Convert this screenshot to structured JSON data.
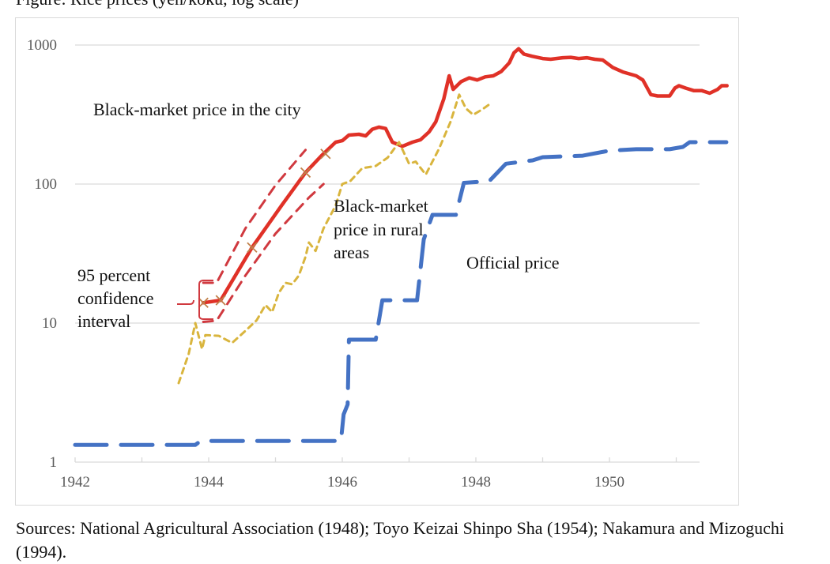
{
  "figure": {
    "title_partial": "Figure: Rice prices (yen/koku, log scale)",
    "sources": "Sources: National Agricultural Association (1948); Toyo Keizai Shinpo Sha (1954); Nakamura and Mizoguchi (1994)."
  },
  "chart_data": {
    "type": "line",
    "title": "",
    "xlabel": "",
    "ylabel": "",
    "yscale": "log",
    "ylim": [
      1,
      1000
    ],
    "xlim": [
      1942,
      1951.4
    ],
    "grid": true,
    "x_ticks": [
      1942,
      1943,
      1944,
      1945,
      1946,
      1947,
      1948,
      1949,
      1950,
      1951
    ],
    "x_tick_labels": [
      "1942",
      "",
      "1944",
      "",
      "1946",
      "",
      "1948",
      "",
      "1950",
      ""
    ],
    "y_ticks": [
      1,
      10,
      100,
      1000
    ],
    "y_tick_labels": [
      "1",
      "10",
      "100",
      "1000"
    ],
    "colors": {
      "city": "#e03127",
      "ci": "#d0393f",
      "rural": "#d9b53e",
      "official": "#4472c4",
      "marker": "#c0804a",
      "brace": "#d0393f",
      "grid": "#d9d9d9"
    },
    "annotations": [
      {
        "id": "city",
        "text": "Black-market price in the city"
      },
      {
        "id": "rural",
        "lines": [
          "Black-market",
          "price in rural",
          "areas"
        ]
      },
      {
        "id": "official",
        "text": "Official price"
      },
      {
        "id": "ci",
        "lines": [
          "95 percent",
          "confidence",
          "interval"
        ]
      }
    ],
    "series": [
      {
        "name": "Black-market price in the city",
        "style": "solid",
        "points": [
          [
            1943.92,
            14.0
          ],
          [
            1944.18,
            14.6
          ],
          [
            1944.65,
            35
          ],
          [
            1945.1,
            71
          ],
          [
            1945.45,
            121
          ],
          [
            1945.7,
            162
          ],
          [
            1945.9,
            200
          ],
          [
            1946.0,
            205
          ],
          [
            1946.1,
            225
          ],
          [
            1946.25,
            228
          ],
          [
            1946.35,
            222
          ],
          [
            1946.45,
            248
          ],
          [
            1946.55,
            257
          ],
          [
            1946.65,
            251
          ],
          [
            1946.75,
            200
          ],
          [
            1946.9,
            187
          ],
          [
            1947.05,
            200
          ],
          [
            1947.17,
            208
          ],
          [
            1947.3,
            237
          ],
          [
            1947.4,
            280
          ],
          [
            1947.52,
            410
          ],
          [
            1947.6,
            600
          ],
          [
            1947.66,
            480
          ],
          [
            1947.78,
            546
          ],
          [
            1947.9,
            580
          ],
          [
            1948.02,
            560
          ],
          [
            1948.14,
            590
          ],
          [
            1948.26,
            600
          ],
          [
            1948.38,
            645
          ],
          [
            1948.5,
            745
          ],
          [
            1948.57,
            880
          ],
          [
            1948.64,
            940
          ],
          [
            1948.72,
            860
          ],
          [
            1948.84,
            830
          ],
          [
            1949.0,
            800
          ],
          [
            1949.12,
            790
          ],
          [
            1949.3,
            810
          ],
          [
            1949.42,
            815
          ],
          [
            1949.54,
            800
          ],
          [
            1949.66,
            810
          ],
          [
            1949.78,
            790
          ],
          [
            1949.9,
            780
          ],
          [
            1950.05,
            690
          ],
          [
            1950.2,
            640
          ],
          [
            1950.4,
            600
          ],
          [
            1950.5,
            560
          ],
          [
            1950.62,
            440
          ],
          [
            1950.72,
            430
          ],
          [
            1950.9,
            430
          ],
          [
            1950.98,
            490
          ],
          [
            1951.04,
            510
          ],
          [
            1951.14,
            490
          ],
          [
            1951.26,
            470
          ],
          [
            1951.38,
            470
          ],
          [
            1951.5,
            450
          ],
          [
            1951.62,
            480
          ],
          [
            1951.68,
            510
          ],
          [
            1951.76,
            510
          ]
        ]
      },
      {
        "name": "95% CI upper",
        "style": "dashed",
        "points": [
          [
            1943.92,
            19.5
          ],
          [
            1944.12,
            19.5
          ],
          [
            1944.55,
            48
          ],
          [
            1945.0,
            98
          ],
          [
            1945.45,
            176
          ]
        ]
      },
      {
        "name": "95% CI lower",
        "style": "dashed",
        "points": [
          [
            1943.92,
            10.2
          ],
          [
            1944.12,
            10.4
          ],
          [
            1944.55,
            22
          ],
          [
            1945.0,
            44
          ],
          [
            1945.5,
            80
          ],
          [
            1945.72,
            100
          ]
        ]
      },
      {
        "name": "Black-market price in rural areas",
        "style": "dotted-dash",
        "points": [
          [
            1943.55,
            3.7
          ],
          [
            1943.7,
            6.0
          ],
          [
            1943.8,
            10.0
          ],
          [
            1943.9,
            6.5
          ],
          [
            1943.95,
            8.2
          ],
          [
            1944.15,
            8.1
          ],
          [
            1944.35,
            7.2
          ],
          [
            1944.55,
            8.8
          ],
          [
            1944.72,
            10.5
          ],
          [
            1944.85,
            13.5
          ],
          [
            1944.95,
            12.0
          ],
          [
            1945.05,
            16.5
          ],
          [
            1945.15,
            19.5
          ],
          [
            1945.25,
            19.0
          ],
          [
            1945.35,
            22
          ],
          [
            1945.45,
            30
          ],
          [
            1945.5,
            38
          ],
          [
            1945.6,
            33
          ],
          [
            1945.72,
            48
          ],
          [
            1945.9,
            70
          ],
          [
            1946.0,
            100
          ],
          [
            1946.12,
            105
          ],
          [
            1946.3,
            130
          ],
          [
            1946.5,
            135
          ],
          [
            1946.68,
            155
          ],
          [
            1946.85,
            200
          ],
          [
            1947.0,
            140
          ],
          [
            1947.1,
            145
          ],
          [
            1947.25,
            117
          ],
          [
            1947.45,
            180
          ],
          [
            1947.62,
            280
          ],
          [
            1947.75,
            440
          ],
          [
            1947.85,
            350
          ],
          [
            1947.96,
            315
          ],
          [
            1948.1,
            345
          ],
          [
            1948.22,
            380
          ]
        ]
      },
      {
        "name": "Official price",
        "style": "long-dash",
        "points": [
          [
            1942.0,
            1.33
          ],
          [
            1943.8,
            1.33
          ],
          [
            1943.88,
            1.42
          ],
          [
            1945.98,
            1.42
          ],
          [
            1946.02,
            2.2
          ],
          [
            1946.08,
            2.6
          ],
          [
            1946.1,
            7.6
          ],
          [
            1946.5,
            7.6
          ],
          [
            1946.6,
            14.6
          ],
          [
            1947.0,
            14.6
          ],
          [
            1947.12,
            14.6
          ],
          [
            1947.22,
            40
          ],
          [
            1947.35,
            60
          ],
          [
            1947.7,
            60
          ],
          [
            1947.82,
            102
          ],
          [
            1948.2,
            105
          ],
          [
            1948.45,
            140
          ],
          [
            1948.85,
            148
          ],
          [
            1949.0,
            156
          ],
          [
            1949.6,
            160
          ],
          [
            1950.0,
            174
          ],
          [
            1950.4,
            178
          ],
          [
            1950.9,
            178
          ],
          [
            1951.1,
            185
          ],
          [
            1951.2,
            200
          ],
          [
            1951.75,
            200
          ]
        ]
      }
    ],
    "markers": {
      "type": "x",
      "on_series": "Black-market price in the city",
      "points": [
        [
          1943.92,
          14.0
        ],
        [
          1944.18,
          14.6
        ],
        [
          1944.65,
          35
        ],
        [
          1945.45,
          121
        ],
        [
          1945.75,
          165
        ]
      ]
    }
  }
}
